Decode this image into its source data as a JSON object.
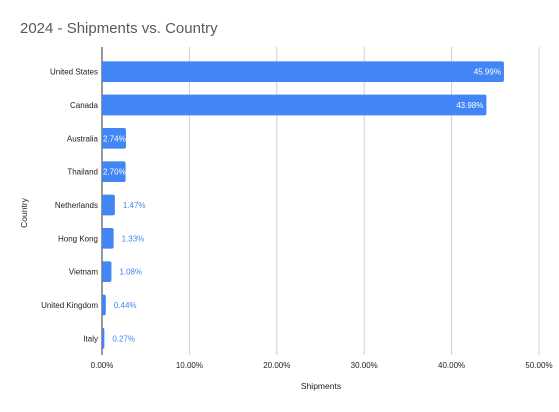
{
  "chart_data": {
    "type": "bar",
    "orientation": "horizontal",
    "title": "2024 - Shipments vs. Country",
    "xlabel": "Shipments",
    "ylabel": "Country",
    "categories": [
      "United States",
      "Canada",
      "Australia",
      "Thailand",
      "Netherlands",
      "Hong Kong",
      "Vietnam",
      "United Kingdom",
      "Italy"
    ],
    "values": [
      45.99,
      43.98,
      2.74,
      2.7,
      1.47,
      1.33,
      1.08,
      0.44,
      0.27
    ],
    "data_labels": [
      "45.99%",
      "43.98%",
      "2.74%",
      "2.70%",
      "1.47%",
      "1.33%",
      "1.08%",
      "0.44%",
      "0.27%"
    ],
    "xlim": [
      0,
      50
    ],
    "x_ticks": [
      "0.00%",
      "10.00%",
      "20.00%",
      "30.00%",
      "40.00%",
      "50.00%"
    ],
    "grid": true,
    "bar_color": "#4285f4",
    "legend": "none"
  }
}
